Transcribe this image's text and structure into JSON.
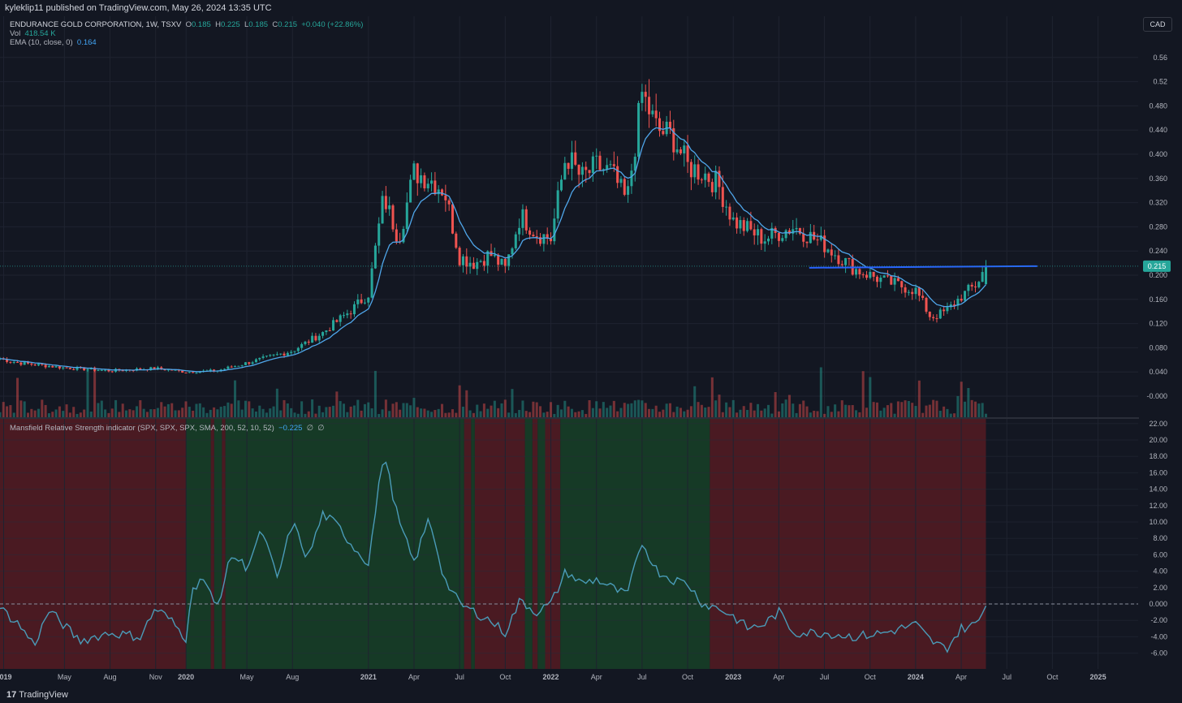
{
  "header": {
    "publish_note": "kyleklip11 published on TradingView.com, May 26, 2024 13:35 UTC"
  },
  "legend": {
    "symbol": "ENDURANCE GOLD CORPORATION, 1W, TSXV",
    "o_label": "O",
    "o_value": "0.185",
    "h_label": "H",
    "h_value": "0.225",
    "l_label": "L",
    "l_value": "0.185",
    "c_label": "C",
    "c_value": "0.215",
    "change": "+0.040 (+22.86%)",
    "vol_label": "Vol",
    "vol_value": "418.54 K",
    "ema_label": "EMA (10, close, 0)",
    "ema_value": "0.164",
    "mansfield_label": "Mansfield Relative Strength indicator (SPX, SPX, SPX, SMA, 200, 52, 10, 52)",
    "mansfield_value": "−0.225",
    "mansfield_na1": "∅",
    "mansfield_na2": "∅"
  },
  "currency": "CAD",
  "last_price_label": "0.215",
  "footer": {
    "brand": "TradingView"
  },
  "colors": {
    "background": "#131722",
    "grid": "#1f2330",
    "up": "#26a69a",
    "down": "#ef5350",
    "ema": "#4fa6ea",
    "trendline": "#2962ff",
    "rs_line": "#4a9bb8",
    "bg_green": "#163a26",
    "bg_red": "#4a1a22"
  },
  "chart_data": [
    {
      "type": "candlestick",
      "title": "ENDURANCE GOLD CORPORATION, 1W, TSXV",
      "price_axis": [
        "0.56",
        "0.52",
        "0.480",
        "0.440",
        "0.400",
        "0.360",
        "0.320",
        "0.280",
        "0.240",
        "0.200",
        "0.160",
        "0.120",
        "0.080",
        "0.040",
        "-0.000"
      ],
      "time_axis": [
        "2019",
        "May",
        "Aug",
        "Nov",
        "2020",
        "May",
        "Aug",
        "2021",
        "Apr",
        "Jul",
        "Oct",
        "2022",
        "Apr",
        "Jul",
        "Oct",
        "2023",
        "Apr",
        "Jul",
        "Oct",
        "2024",
        "Apr",
        "Jul",
        "Oct",
        "2025"
      ],
      "last": {
        "open": 0.185,
        "high": 0.225,
        "low": 0.185,
        "close": 0.215,
        "change": 0.04,
        "change_pct": 22.86
      },
      "ema": {
        "length": 10,
        "last": 0.164
      },
      "volume_last": "418.54 K",
      "horizontal_trendline": {
        "price": 0.215,
        "from": "2023-06",
        "to": "2024-09"
      },
      "price_path": [
        [
          "2018-12-24",
          0.062
        ],
        [
          "2019-02",
          0.055
        ],
        [
          "2019-05",
          0.047
        ],
        [
          "2019-08",
          0.042
        ],
        [
          "2019-11",
          0.046
        ],
        [
          "2020-01",
          0.04
        ],
        [
          "2020-03",
          0.042
        ],
        [
          "2020-05",
          0.055
        ],
        [
          "2020-08",
          0.075
        ],
        [
          "2020-10",
          0.105
        ],
        [
          "2020-12",
          0.145
        ],
        [
          "2021-01",
          0.17
        ],
        [
          "2021-02",
          0.33
        ],
        [
          "2021-03",
          0.26
        ],
        [
          "2021-04",
          0.37
        ],
        [
          "2021-05",
          0.36
        ],
        [
          "2021-06",
          0.34
        ],
        [
          "2021-07",
          0.23
        ],
        [
          "2021-08",
          0.22
        ],
        [
          "2021-09",
          0.235
        ],
        [
          "2021-10",
          0.21
        ],
        [
          "2021-11",
          0.3
        ],
        [
          "2021-12",
          0.27
        ],
        [
          "2022-01",
          0.26
        ],
        [
          "2022-02",
          0.4
        ],
        [
          "2022-03",
          0.36
        ],
        [
          "2022-04",
          0.38
        ],
        [
          "2022-05",
          0.37
        ],
        [
          "2022-06",
          0.32
        ],
        [
          "2022-07",
          0.5
        ],
        [
          "2022-08",
          0.44
        ],
        [
          "2022-09",
          0.43
        ],
        [
          "2022-10",
          0.38
        ],
        [
          "2022-11",
          0.37
        ],
        [
          "2022-12",
          0.35
        ],
        [
          "2023-01",
          0.29
        ],
        [
          "2023-03",
          0.26
        ],
        [
          "2023-05",
          0.28
        ],
        [
          "2023-07",
          0.25
        ],
        [
          "2023-09",
          0.21
        ],
        [
          "2023-11",
          0.19
        ],
        [
          "2024-01",
          0.175
        ],
        [
          "2024-02",
          0.13
        ],
        [
          "2024-03",
          0.14
        ],
        [
          "2024-04",
          0.165
        ],
        [
          "2024-05",
          0.185
        ],
        [
          "2024-05-20",
          0.215
        ]
      ]
    },
    {
      "type": "line",
      "title": "Mansfield Relative Strength indicator (SPX, SPX, SPX, SMA, 200, 52, 10, 52)",
      "last": -0.225,
      "y_axis": [
        "22.00",
        "20.00",
        "18.00",
        "16.00",
        "14.00",
        "12.00",
        "10.00",
        "8.00",
        "6.00",
        "4.00",
        "2.00",
        "0.000",
        "-2.00",
        "-4.00",
        "-6.00"
      ],
      "zero_line": 0,
      "background_regions": [
        {
          "from": "2018-12",
          "to": "2020-01",
          "color": "red"
        },
        {
          "from": "2020-01",
          "to": "2020-02-20",
          "color": "green"
        },
        {
          "from": "2020-02-20",
          "to": "2020-02-27",
          "color": "red"
        },
        {
          "from": "2020-02-27",
          "to": "2020-03-12",
          "color": "green"
        },
        {
          "from": "2020-03-12",
          "to": "2020-03-19",
          "color": "red"
        },
        {
          "from": "2020-03-19",
          "to": "2021-07-10",
          "color": "green"
        },
        {
          "from": "2021-07-10",
          "to": "2021-07-24",
          "color": "red"
        },
        {
          "from": "2021-07-24",
          "to": "2021-08-01",
          "color": "green"
        },
        {
          "from": "2021-08-01",
          "to": "2021-11-10",
          "color": "red"
        },
        {
          "from": "2021-11-10",
          "to": "2021-11-25",
          "color": "green"
        },
        {
          "from": "2021-11-25",
          "to": "2021-12-05",
          "color": "red"
        },
        {
          "from": "2021-12-05",
          "to": "2021-12-20",
          "color": "green"
        },
        {
          "from": "2021-12-20",
          "to": "2022-01-20",
          "color": "red"
        },
        {
          "from": "2022-01-20",
          "to": "2022-11-15",
          "color": "green"
        },
        {
          "from": "2022-11-15",
          "to": "2024-05-20",
          "color": "red"
        }
      ],
      "points": [
        [
          "2018-12-24",
          -0.5
        ],
        [
          "2019-02",
          -2.5
        ],
        [
          "2019-03",
          -5.0
        ],
        [
          "2019-04",
          -0.8
        ],
        [
          "2019-06",
          -4.5
        ],
        [
          "2019-08",
          -3.5
        ],
        [
          "2019-10",
          -4.0
        ],
        [
          "2019-11",
          -0.5
        ],
        [
          "2019-12",
          -2.0
        ],
        [
          "2020-01",
          -4.2
        ],
        [
          "2020-01-10",
          1.0
        ],
        [
          "2020-02",
          3.5
        ],
        [
          "2020-03",
          -0.5
        ],
        [
          "2020-04",
          6.0
        ],
        [
          "2020-05",
          4.5
        ],
        [
          "2020-06",
          9.0
        ],
        [
          "2020-07",
          3.0
        ],
        [
          "2020-08",
          10.0
        ],
        [
          "2020-09",
          5.5
        ],
        [
          "2020-10",
          11.0
        ],
        [
          "2020-11",
          9.5
        ],
        [
          "2020-12",
          7.0
        ],
        [
          "2021-01",
          5.0
        ],
        [
          "2021-02",
          18.5
        ],
        [
          "2021-03",
          10.0
        ],
        [
          "2021-04",
          5.0
        ],
        [
          "2021-05",
          10.5
        ],
        [
          "2021-06",
          3.0
        ],
        [
          "2021-07",
          0.0
        ],
        [
          "2021-08",
          -1.0
        ],
        [
          "2021-09",
          -2.0
        ],
        [
          "2021-10",
          -3.5
        ],
        [
          "2021-11",
          0.5
        ],
        [
          "2021-12",
          -1.0
        ],
        [
          "2022-01",
          0.0
        ],
        [
          "2022-02",
          4.0
        ],
        [
          "2022-03",
          2.5
        ],
        [
          "2022-04",
          3.0
        ],
        [
          "2022-05",
          2.0
        ],
        [
          "2022-06",
          1.0
        ],
        [
          "2022-07",
          7.5
        ],
        [
          "2022-08",
          4.0
        ],
        [
          "2022-09",
          3.0
        ],
        [
          "2022-10",
          2.5
        ],
        [
          "2022-11",
          0.0
        ],
        [
          "2022-12",
          -0.5
        ],
        [
          "2023-01",
          -1.5
        ],
        [
          "2023-02",
          -3.0
        ],
        [
          "2023-03",
          -2.5
        ],
        [
          "2023-04",
          -1.0
        ],
        [
          "2023-05",
          -3.5
        ],
        [
          "2023-07",
          -3.5
        ],
        [
          "2023-09",
          -4.0
        ],
        [
          "2023-11",
          -3.5
        ],
        [
          "2024-01",
          -2.5
        ],
        [
          "2024-02",
          -4.5
        ],
        [
          "2024-03",
          -5.5
        ],
        [
          "2024-04",
          -3.0
        ],
        [
          "2024-05",
          -2.5
        ],
        [
          "2024-05-20",
          -0.225
        ]
      ]
    }
  ]
}
